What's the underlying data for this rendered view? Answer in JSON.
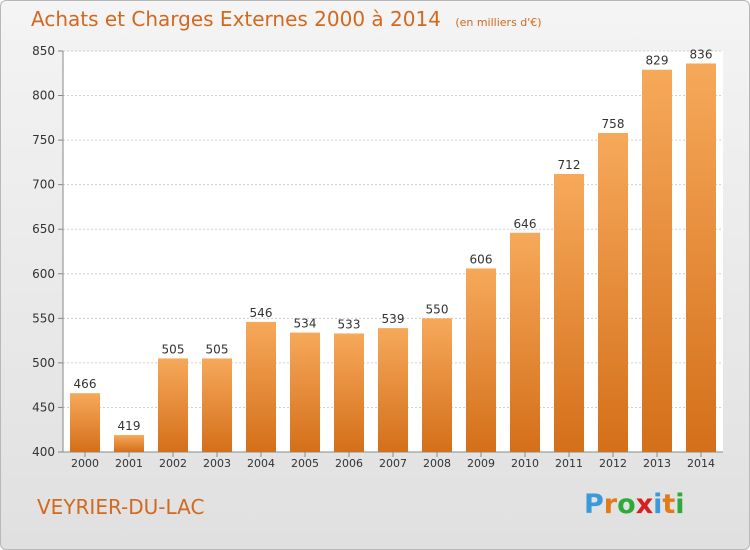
{
  "title": "Achats et Charges Externes 2000 à 2014",
  "subtitle": "(en milliers d'€)",
  "commune": "VEYRIER-DU-LAC",
  "logo": {
    "letters": [
      "P",
      "r",
      "o",
      "x",
      "i",
      "t",
      "i"
    ],
    "colors": [
      "#3a9ad9",
      "#e07b18",
      "#2eaa3a",
      "#d81e1e",
      "#3a9ad9",
      "#e07b18",
      "#2eaa3a"
    ]
  },
  "colors": {
    "bar_light": "#f6a95a",
    "bar_dark": "#d46f1a",
    "text": "#d2691e"
  },
  "chart_data": {
    "type": "bar",
    "title": "Achats et Charges Externes 2000 à 2014",
    "categories": [
      "2000",
      "2001",
      "2002",
      "2003",
      "2004",
      "2005",
      "2006",
      "2007",
      "2008",
      "2009",
      "2010",
      "2011",
      "2012",
      "2013",
      "2014"
    ],
    "values": [
      466,
      419,
      505,
      505,
      546,
      534,
      533,
      539,
      550,
      606,
      646,
      712,
      758,
      829,
      836
    ],
    "ylim": [
      400,
      850
    ],
    "yticks": [
      400,
      450,
      500,
      550,
      600,
      650,
      700,
      750,
      800,
      850
    ],
    "grid": true
  }
}
